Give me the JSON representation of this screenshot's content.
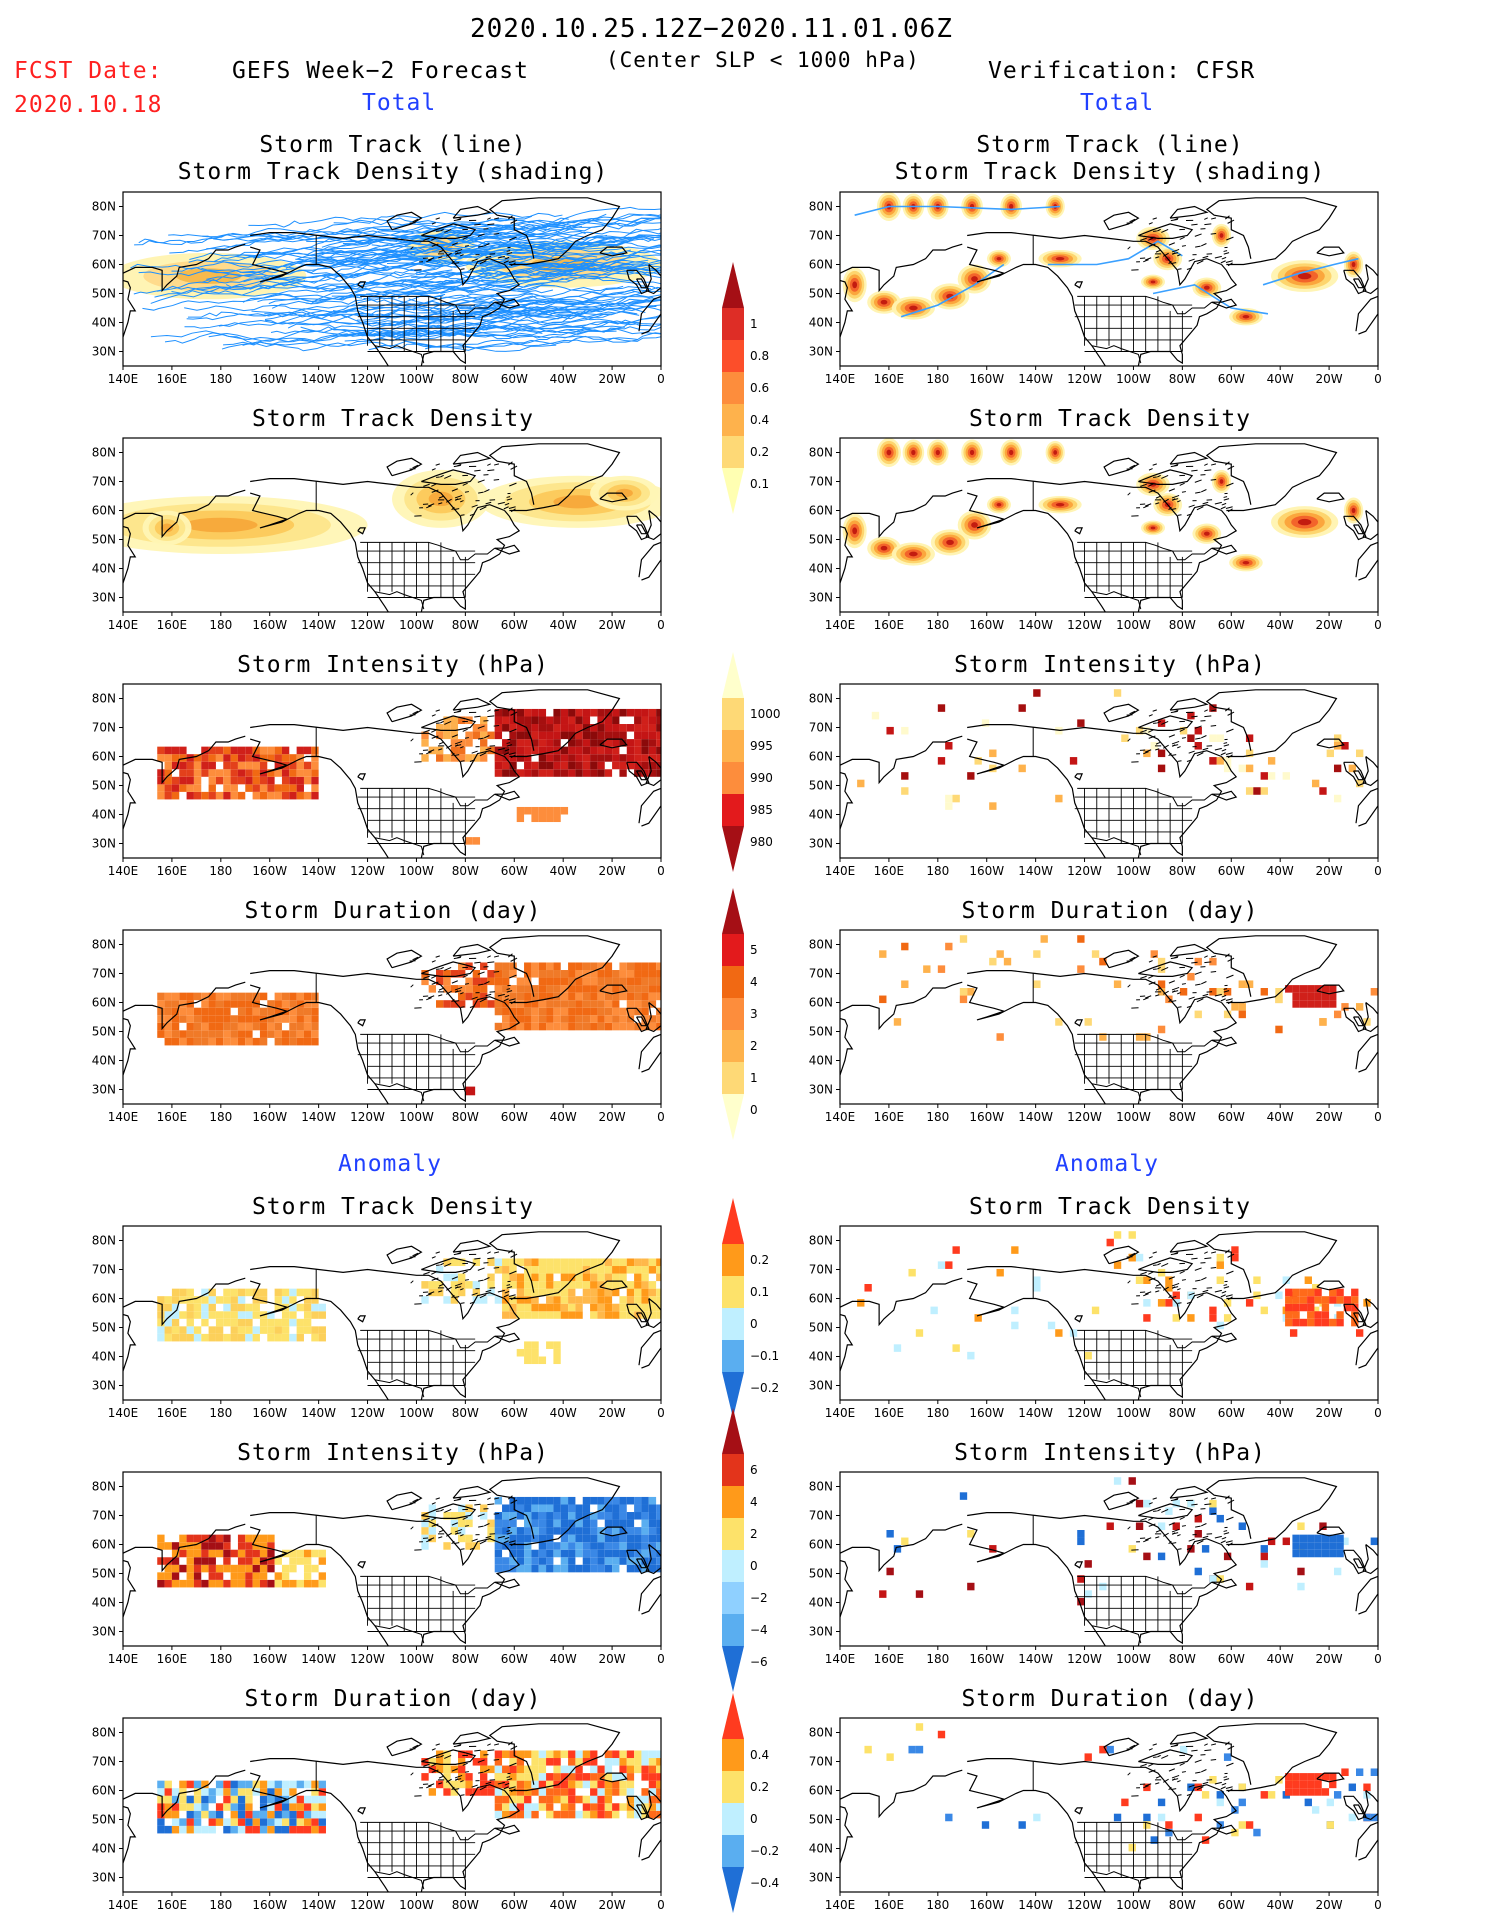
{
  "header": {
    "time_range": "2020.10.25.12Z−2020.11.01.06Z",
    "criteria": "(Center SLP < 1000 hPa)",
    "fcst_label": "FCST Date:",
    "fcst_date": "2020.10.18",
    "left_title": "GEFS Week−2 Forecast",
    "right_title": "Verification: CFSR"
  },
  "section_labels": {
    "total": "Total",
    "anomaly": "Anomaly"
  },
  "panel_titles": {
    "track_line": "Storm Track (line)",
    "track_shading": "Storm Track Density (shading)",
    "density": "Storm Track Density",
    "intensity": "Storm Intensity (hPa)",
    "duration": "Storm Duration (day)"
  },
  "axes": {
    "lon_labels": [
      "140E",
      "160E",
      "180",
      "160W",
      "140W",
      "120W",
      "100W",
      "80W",
      "60W",
      "40W",
      "20W",
      "0"
    ],
    "lat_labels": [
      "80N",
      "70N",
      "60N",
      "50N",
      "40N",
      "30N"
    ],
    "lon_range": [
      140,
      360
    ],
    "lat_range": [
      25,
      85
    ]
  },
  "colorbars": {
    "density_total": {
      "labels": [
        "1",
        "0.8",
        "0.6",
        "0.4",
        "0.2",
        "0.1"
      ],
      "colors": [
        "#a50f15",
        "#de2d26",
        "#fc4e2a",
        "#fd8d3c",
        "#feb24c",
        "#fed976",
        "#ffffb2"
      ]
    },
    "intensity_total": {
      "labels": [
        "1000",
        "995",
        "990",
        "985",
        "980"
      ],
      "colors": [
        "#ffffcc",
        "#fed976",
        "#feb24c",
        "#fd8d3c",
        "#e31a1c",
        "#a50f15"
      ]
    },
    "duration_total": {
      "labels": [
        "5",
        "4",
        "3",
        "2",
        "1",
        "0"
      ],
      "colors": [
        "#a50f15",
        "#e31a1c",
        "#f16913",
        "#fd8d3c",
        "#feb24c",
        "#fed976",
        "#ffffcc"
      ]
    },
    "density_anom": {
      "labels": [
        "0.2",
        "0.1",
        "0",
        "−0.1",
        "−0.2"
      ],
      "colors": [
        "#ff3b1f",
        "#ff9a1a",
        "#fde26a",
        "#bfefff",
        "#5aaef0",
        "#1f6fd6"
      ]
    },
    "intensity_anom": {
      "labels": [
        "6",
        "4",
        "2",
        "0",
        "−2",
        "−4",
        "−6"
      ],
      "colors": [
        "#a50f15",
        "#e3341b",
        "#ff9a1a",
        "#fde26a",
        "#bfefff",
        "#8fd0ff",
        "#5aaef0",
        "#1f6fd6"
      ]
    },
    "duration_anom": {
      "labels": [
        "0.4",
        "0.2",
        "0",
        "−0.2",
        "−0.4"
      ],
      "colors": [
        "#ff3b1f",
        "#ff9a1a",
        "#fde26a",
        "#bfefff",
        "#5aaef0",
        "#1f6fd6"
      ]
    }
  },
  "palette": {
    "coast": "#000000",
    "track": "#1e90ff",
    "red": "#ff2020",
    "blue": "#2040ff"
  }
}
